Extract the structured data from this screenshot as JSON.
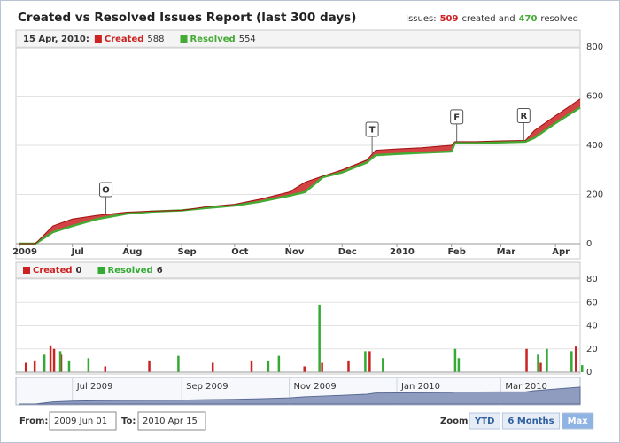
{
  "header": {
    "title": "Created vs Resolved Issues Report (last 300 days)",
    "summary": {
      "prefix": "Issues:",
      "created": 509,
      "middle": "created and",
      "resolved": 470,
      "suffix": "resolved"
    }
  },
  "chart_data": [
    {
      "type": "line",
      "legend_date": "15 Apr, 2010:",
      "x": [
        "2009-06-01",
        "2009-06-10",
        "2009-06-20",
        "2009-07-01",
        "2009-07-15",
        "2009-08-01",
        "2009-08-15",
        "2009-09-01",
        "2009-09-15",
        "2009-10-01",
        "2009-10-15",
        "2009-11-01",
        "2009-11-10",
        "2009-11-20",
        "2009-12-01",
        "2009-12-15",
        "2009-12-20",
        "2010-01-01",
        "2010-01-15",
        "2010-02-01",
        "2010-02-03",
        "2010-02-15",
        "2010-03-01",
        "2010-03-15",
        "2010-03-20",
        "2010-04-01",
        "2010-04-15"
      ],
      "xlim": [
        "2009-06-01",
        "2010-04-15"
      ],
      "xticks": [
        {
          "value": "2009-06-01",
          "label": "2009"
        },
        {
          "value": "2009-07-01",
          "label": "Jul"
        },
        {
          "value": "2009-08-01",
          "label": "Aug"
        },
        {
          "value": "2009-09-01",
          "label": "Sep"
        },
        {
          "value": "2009-10-01",
          "label": "Oct"
        },
        {
          "value": "2009-11-01",
          "label": "Nov"
        },
        {
          "value": "2009-12-01",
          "label": "Dec"
        },
        {
          "value": "2010-01-01",
          "label": "2010"
        },
        {
          "value": "2010-02-01",
          "label": "Feb"
        },
        {
          "value": "2010-03-01",
          "label": "Mar"
        },
        {
          "value": "2010-04-01",
          "label": "Apr"
        }
      ],
      "ylim": [
        0,
        800
      ],
      "yticks": [
        0,
        200,
        400,
        600,
        800
      ],
      "grid": true,
      "series": [
        {
          "name": "Created",
          "color": "#cc2222",
          "values": [
            0,
            0,
            72,
            100,
            115,
            128,
            132,
            135,
            150,
            160,
            180,
            210,
            250,
            275,
            300,
            340,
            380,
            385,
            390,
            400,
            415,
            415,
            418,
            420,
            460,
            520,
            588
          ]
        },
        {
          "name": "Resolved",
          "color": "#44aa33",
          "values": [
            0,
            0,
            47,
            72,
            100,
            122,
            130,
            135,
            145,
            155,
            170,
            195,
            210,
            270,
            290,
            330,
            360,
            365,
            370,
            375,
            410,
            410,
            412,
            415,
            430,
            490,
            554
          ]
        }
      ],
      "annotations": [
        {
          "x": "2009-07-20",
          "label": "O"
        },
        {
          "x": "2009-12-18",
          "label": "T"
        },
        {
          "x": "2010-02-04",
          "label": "F"
        },
        {
          "x": "2010-03-14",
          "label": "R"
        }
      ]
    },
    {
      "type": "bar",
      "xlim": [
        "2009-06-01",
        "2010-04-15"
      ],
      "ylim": [
        0,
        80
      ],
      "yticks": [
        0,
        20,
        40,
        60,
        80
      ],
      "grid": true,
      "series": [
        {
          "name": "Created",
          "color": "#cc2222",
          "x": [
            "2009-06-05",
            "2009-06-10",
            "2009-06-19",
            "2009-06-21",
            "2009-06-25",
            "2009-07-20",
            "2009-08-14",
            "2009-09-19",
            "2009-10-11",
            "2009-11-10",
            "2009-11-20",
            "2009-12-05",
            "2009-12-17",
            "2010-03-16",
            "2010-03-24",
            "2010-04-13",
            "2010-04-15"
          ],
          "values": [
            8,
            10,
            23,
            20,
            15,
            5,
            10,
            8,
            10,
            5,
            8,
            10,
            18,
            20,
            8,
            22,
            0
          ]
        },
        {
          "name": "Resolved",
          "color": "#33aa33",
          "x": [
            "2009-06-14",
            "2009-06-23",
            "2009-06-28",
            "2009-07-09",
            "2009-08-29",
            "2009-10-19",
            "2009-10-25",
            "2009-11-17",
            "2009-12-13",
            "2009-12-23",
            "2010-02-02",
            "2010-02-04",
            "2010-03-21",
            "2010-03-26",
            "2010-04-09",
            "2010-04-15"
          ],
          "values": [
            15,
            18,
            10,
            12,
            14,
            10,
            14,
            58,
            18,
            12,
            20,
            12,
            15,
            20,
            18,
            6
          ]
        }
      ]
    }
  ],
  "navigator": {
    "xticks": [
      {
        "value": "2009-07-01",
        "label": "Jul 2009"
      },
      {
        "value": "2009-09-01",
        "label": "Sep 2009"
      },
      {
        "value": "2009-11-01",
        "label": "Nov 2009"
      },
      {
        "value": "2010-01-01",
        "label": "Jan 2010"
      },
      {
        "value": "2010-03-01",
        "label": "Mar 2010"
      }
    ]
  },
  "controls": {
    "from_label": "From:",
    "from": "2009 Jun 01",
    "to_label": "To:",
    "to": "2010 Apr 15",
    "zoom_label": "Zoom:",
    "zoom": [
      "YTD",
      "6 Months",
      "Max"
    ],
    "zoom_selected": 2
  }
}
